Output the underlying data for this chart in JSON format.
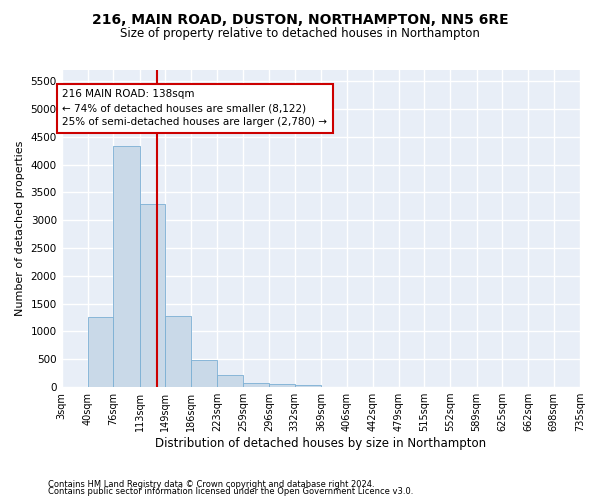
{
  "title": "216, MAIN ROAD, DUSTON, NORTHAMPTON, NN5 6RE",
  "subtitle": "Size of property relative to detached houses in Northampton",
  "xlabel": "Distribution of detached houses by size in Northampton",
  "ylabel": "Number of detached properties",
  "footnote1": "Contains HM Land Registry data © Crown copyright and database right 2024.",
  "footnote2": "Contains public sector information licensed under the Open Government Licence v3.0.",
  "annotation_line1": "216 MAIN ROAD: 138sqm",
  "annotation_line2": "← 74% of detached houses are smaller (8,122)",
  "annotation_line3": "25% of semi-detached houses are larger (2,780) →",
  "property_size": 138,
  "bar_color": "#c9d9e8",
  "bar_edge_color": "#7bafd4",
  "vline_color": "#cc0000",
  "background_color": "#e8eef7",
  "grid_color": "#ffffff",
  "bins": [
    3,
    40,
    76,
    113,
    149,
    186,
    223,
    259,
    296,
    332,
    369,
    406,
    442,
    479,
    515,
    552,
    589,
    625,
    662,
    698,
    735
  ],
  "counts": [
    0,
    1260,
    4330,
    3300,
    1270,
    480,
    215,
    80,
    55,
    35,
    0,
    0,
    0,
    0,
    0,
    0,
    0,
    0,
    0,
    0
  ],
  "ylim": [
    0,
    5700
  ],
  "yticks": [
    0,
    500,
    1000,
    1500,
    2000,
    2500,
    3000,
    3500,
    4000,
    4500,
    5000,
    5500
  ],
  "annotation_box_color": "#ffffff",
  "annotation_box_edge": "#cc0000",
  "title_fontsize": 10,
  "subtitle_fontsize": 8.5,
  "ylabel_fontsize": 8,
  "xlabel_fontsize": 8.5,
  "tick_fontsize": 7,
  "ytick_fontsize": 7.5,
  "footnote_fontsize": 6.0
}
